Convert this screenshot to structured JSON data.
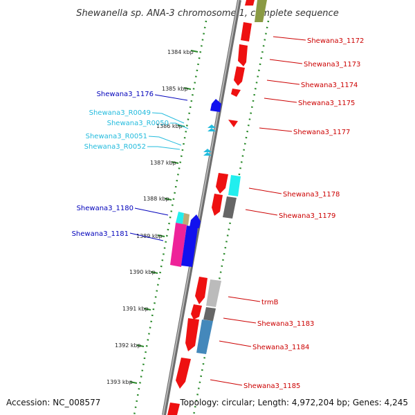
{
  "title": "Shewanella sp. ANA-3 chromosome 1, complete sequence",
  "footer": {
    "accession": "Accession: NC_008577",
    "topology": "Topology: circular; Length: 4,972,204 bp; Genes: 4,245"
  },
  "colors": {
    "backbone": "#8a8a8a",
    "tick_green": "#2a8a2a",
    "label_red": "#cc0000",
    "label_blue": "#0000bb",
    "label_cyan": "#22bbdd",
    "gene_red": "#ee1111",
    "gene_blue": "#1111ee",
    "gene_cyan": "#22eeee",
    "gene_magenta": "#ee2299",
    "gene_gray": "#666666",
    "gene_lightgray": "#bbbbbb",
    "gene_steel": "#4488bb",
    "gene_olive": "#8a9a44",
    "gene_tan": "#bbaa77"
  },
  "ticks": [
    {
      "label": "1384 kbp"
    },
    {
      "label": "1385 kbp"
    },
    {
      "label": "1386 kbp"
    },
    {
      "label": "1387 kbp"
    },
    {
      "label": "1388 kbp"
    },
    {
      "label": "1389 kbp"
    },
    {
      "label": "1390 kbp"
    },
    {
      "label": "1391 kbp"
    },
    {
      "label": "1392 kbp"
    },
    {
      "label": "1393 kbp"
    }
  ],
  "genes_right": [
    {
      "label": "Shewana3_1172"
    },
    {
      "label": "Shewana3_1173"
    },
    {
      "label": "Shewana3_1174"
    },
    {
      "label": "Shewana3_1175"
    },
    {
      "label": "Shewana3_1177"
    },
    {
      "label": "Shewana3_1178"
    },
    {
      "label": "Shewana3_1179"
    },
    {
      "label": "trmB"
    },
    {
      "label": "Shewana3_1183"
    },
    {
      "label": "Shewana3_1184"
    },
    {
      "label": "Shewana3_1185"
    }
  ],
  "genes_left": [
    {
      "label": "Shewana3_1176"
    },
    {
      "label": "Shewana3_R0049"
    },
    {
      "label": "Shewana3_R0050"
    },
    {
      "label": "Shewana3_R0051"
    },
    {
      "label": "Shewana3_R0052"
    },
    {
      "label": "Shewana3_1180"
    },
    {
      "label": "Shewana3_1181"
    }
  ]
}
